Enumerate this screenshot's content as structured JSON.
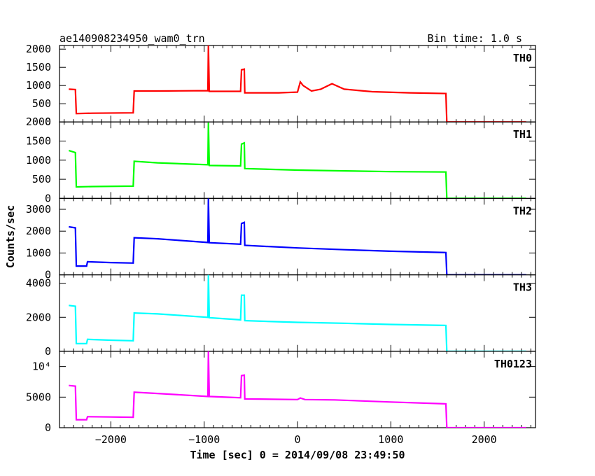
{
  "title_left": "ae140908234950_wam0_trn",
  "title_right": "Bin time: 1.0 s",
  "xlabel": "Time [sec] 0 = 2014/09/08 23:49:50",
  "ylabel": "Counts/sec",
  "chart_data": {
    "type": "line",
    "x_range": [
      -2550,
      2550
    ],
    "x_ticks": [
      -2000,
      -1000,
      0,
      1000,
      2000
    ],
    "x_tick_labels": [
      "−2000",
      "−1000",
      "0",
      "1000",
      "2000"
    ],
    "series": [
      {
        "name": "TH0",
        "color": "#ff0000",
        "ylim": [
          0,
          2100
        ],
        "y_ticks": [
          0,
          500,
          1000,
          1500,
          2000
        ],
        "y_tick_labels": [
          "0",
          "500",
          "1000",
          "1500",
          "2000"
        ],
        "data": [
          [
            -2450,
            900
          ],
          [
            -2380,
            890
          ],
          [
            -2370,
            230
          ],
          [
            -2200,
            240
          ],
          [
            -1760,
            250
          ],
          [
            -1750,
            850
          ],
          [
            -1500,
            850
          ],
          [
            -960,
            860
          ],
          [
            -955,
            2100
          ],
          [
            -945,
            840
          ],
          [
            -610,
            840
          ],
          [
            -600,
            1430
          ],
          [
            -570,
            1450
          ],
          [
            -565,
            800
          ],
          [
            -200,
            800
          ],
          [
            0,
            820
          ],
          [
            30,
            1100
          ],
          [
            60,
            1000
          ],
          [
            150,
            850
          ],
          [
            250,
            900
          ],
          [
            370,
            1050
          ],
          [
            500,
            900
          ],
          [
            800,
            830
          ],
          [
            1200,
            800
          ],
          [
            1590,
            780
          ],
          [
            1600,
            0
          ],
          [
            2450,
            0
          ]
        ]
      },
      {
        "name": "TH1",
        "color": "#00ff00",
        "ylim": [
          0,
          2000
        ],
        "y_ticks": [
          0,
          500,
          1000,
          1500,
          2000
        ],
        "y_tick_labels": [
          "0",
          "500",
          "1000",
          "1500",
          "2000"
        ],
        "data": [
          [
            -2450,
            1250
          ],
          [
            -2380,
            1200
          ],
          [
            -2370,
            300
          ],
          [
            -2200,
            310
          ],
          [
            -1760,
            320
          ],
          [
            -1750,
            970
          ],
          [
            -1500,
            930
          ],
          [
            -960,
            880
          ],
          [
            -955,
            1980
          ],
          [
            -945,
            860
          ],
          [
            -610,
            850
          ],
          [
            -600,
            1420
          ],
          [
            -570,
            1450
          ],
          [
            -565,
            780
          ],
          [
            0,
            740
          ],
          [
            500,
            720
          ],
          [
            1000,
            700
          ],
          [
            1590,
            690
          ],
          [
            1600,
            0
          ],
          [
            2450,
            0
          ]
        ]
      },
      {
        "name": "TH2",
        "color": "#0000ff",
        "ylim": [
          0,
          3500
        ],
        "y_ticks": [
          0,
          1000,
          2000,
          3000
        ],
        "y_tick_labels": [
          "0",
          "1000",
          "2000",
          "3000"
        ],
        "data": [
          [
            -2450,
            2200
          ],
          [
            -2380,
            2150
          ],
          [
            -2370,
            400
          ],
          [
            -2260,
            400
          ],
          [
            -2250,
            600
          ],
          [
            -2000,
            560
          ],
          [
            -1760,
            540
          ],
          [
            -1750,
            1700
          ],
          [
            -1500,
            1650
          ],
          [
            -960,
            1480
          ],
          [
            -955,
            3500
          ],
          [
            -945,
            1470
          ],
          [
            -610,
            1400
          ],
          [
            -600,
            2350
          ],
          [
            -570,
            2400
          ],
          [
            -565,
            1350
          ],
          [
            0,
            1230
          ],
          [
            500,
            1150
          ],
          [
            1000,
            1080
          ],
          [
            1590,
            1020
          ],
          [
            1600,
            0
          ],
          [
            2450,
            0
          ]
        ]
      },
      {
        "name": "TH3",
        "color": "#00ffff",
        "ylim": [
          0,
          4500
        ],
        "y_ticks": [
          0,
          2000,
          4000
        ],
        "y_tick_labels": [
          "0",
          "2000",
          "4000"
        ],
        "data": [
          [
            -2450,
            2700
          ],
          [
            -2380,
            2650
          ],
          [
            -2370,
            450
          ],
          [
            -2260,
            450
          ],
          [
            -2250,
            700
          ],
          [
            -2000,
            650
          ],
          [
            -1760,
            620
          ],
          [
            -1750,
            2250
          ],
          [
            -1500,
            2200
          ],
          [
            -960,
            2000
          ],
          [
            -955,
            4500
          ],
          [
            -945,
            1980
          ],
          [
            -610,
            1850
          ],
          [
            -600,
            3300
          ],
          [
            -570,
            3300
          ],
          [
            -565,
            1800
          ],
          [
            0,
            1700
          ],
          [
            500,
            1650
          ],
          [
            1000,
            1580
          ],
          [
            1590,
            1520
          ],
          [
            1600,
            0
          ],
          [
            2450,
            0
          ]
        ]
      },
      {
        "name": "TH0123",
        "color": "#ff00ff",
        "ylim": [
          0,
          12500
        ],
        "y_ticks": [
          0,
          5000,
          10000
        ],
        "y_tick_labels": [
          "0",
          "5000",
          "10⁴"
        ],
        "data": [
          [
            -2450,
            6900
          ],
          [
            -2380,
            6800
          ],
          [
            -2370,
            1300
          ],
          [
            -2260,
            1300
          ],
          [
            -2250,
            1800
          ],
          [
            -2000,
            1750
          ],
          [
            -1760,
            1700
          ],
          [
            -1750,
            5800
          ],
          [
            -1500,
            5600
          ],
          [
            -960,
            5100
          ],
          [
            -955,
            12500
          ],
          [
            -945,
            5100
          ],
          [
            -610,
            4900
          ],
          [
            -600,
            8500
          ],
          [
            -570,
            8600
          ],
          [
            -565,
            4700
          ],
          [
            0,
            4600
          ],
          [
            30,
            4850
          ],
          [
            80,
            4600
          ],
          [
            400,
            4550
          ],
          [
            1000,
            4200
          ],
          [
            1590,
            3900
          ],
          [
            1600,
            0
          ],
          [
            2450,
            0
          ]
        ]
      }
    ]
  }
}
